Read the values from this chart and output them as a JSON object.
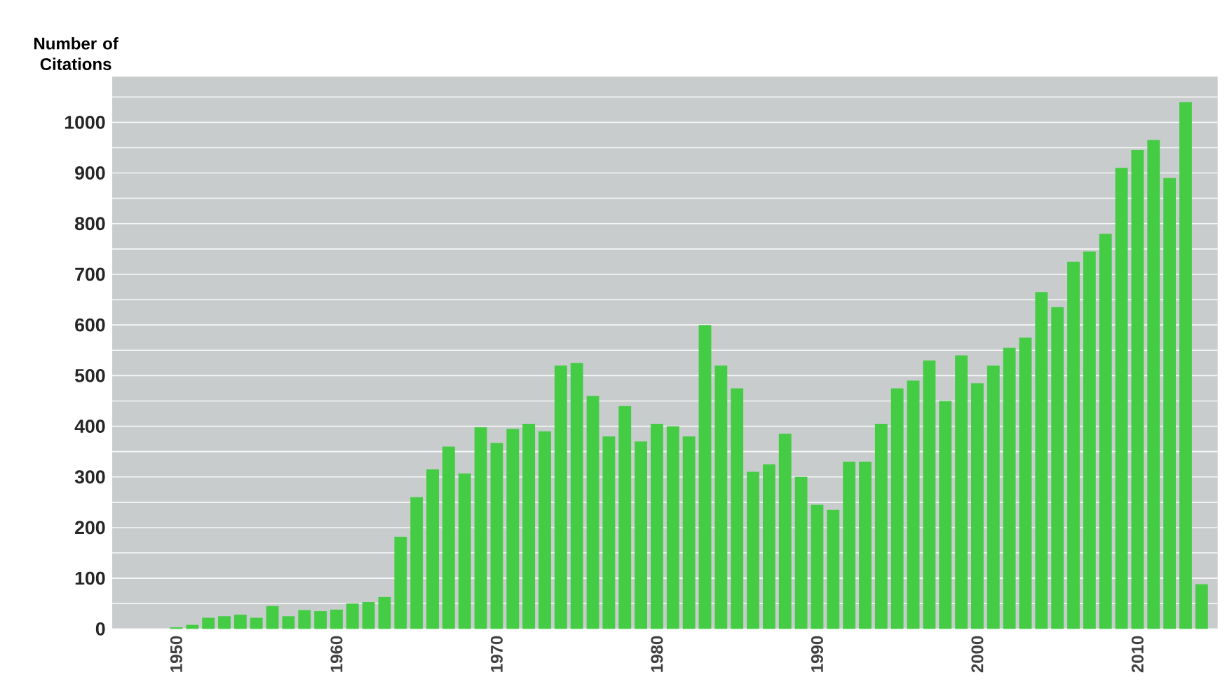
{
  "chart_data": {
    "type": "bar",
    "ylabel": "Number of Citations",
    "x": [
      1950,
      1951,
      1952,
      1953,
      1954,
      1955,
      1956,
      1957,
      1958,
      1959,
      1960,
      1961,
      1962,
      1963,
      1964,
      1965,
      1966,
      1967,
      1968,
      1969,
      1970,
      1971,
      1972,
      1973,
      1974,
      1975,
      1976,
      1977,
      1978,
      1979,
      1980,
      1981,
      1982,
      1983,
      1984,
      1985,
      1986,
      1987,
      1988,
      1989,
      1990,
      1991,
      1992,
      1993,
      1994,
      1995,
      1996,
      1997,
      1998,
      1999,
      2000,
      2001,
      2002,
      2003,
      2004,
      2005,
      2006,
      2007,
      2008,
      2009,
      2010,
      2011,
      2012,
      2013,
      2014
    ],
    "values": [
      3,
      8,
      22,
      25,
      28,
      22,
      45,
      25,
      37,
      35,
      38,
      50,
      53,
      63,
      182,
      260,
      315,
      360,
      307,
      398,
      367,
      395,
      405,
      390,
      520,
      525,
      460,
      380,
      440,
      370,
      405,
      400,
      380,
      600,
      520,
      475,
      310,
      325,
      385,
      300,
      245,
      235,
      330,
      330,
      405,
      475,
      490,
      530,
      450,
      540,
      485,
      520,
      555,
      575,
      665,
      635,
      725,
      745,
      780,
      910,
      945,
      965,
      890,
      1040,
      88
    ],
    "color": "#44cc44",
    "xlim": [
      1946,
      2015
    ],
    "xticks": [
      1950,
      1960,
      1970,
      1980,
      1990,
      2000,
      2010
    ],
    "ylim": [
      0,
      1090
    ],
    "yticks": [
      0,
      {
        "value": 50,
        "label": null
      },
      100,
      {
        "value": 150,
        "label": null
      },
      200,
      {
        "value": 250,
        "label": null
      },
      300,
      {
        "value": 350,
        "label": null
      },
      400,
      {
        "value": 450,
        "label": null
      },
      500,
      {
        "value": 550,
        "label": null
      },
      600,
      {
        "value": 650,
        "label": null
      },
      700,
      {
        "value": 750,
        "label": null
      },
      800,
      {
        "value": 850,
        "label": null
      },
      900,
      {
        "value": 950,
        "label": null
      },
      1000,
      {
        "value": 1050,
        "label": null
      }
    ],
    "grid": "y"
  }
}
